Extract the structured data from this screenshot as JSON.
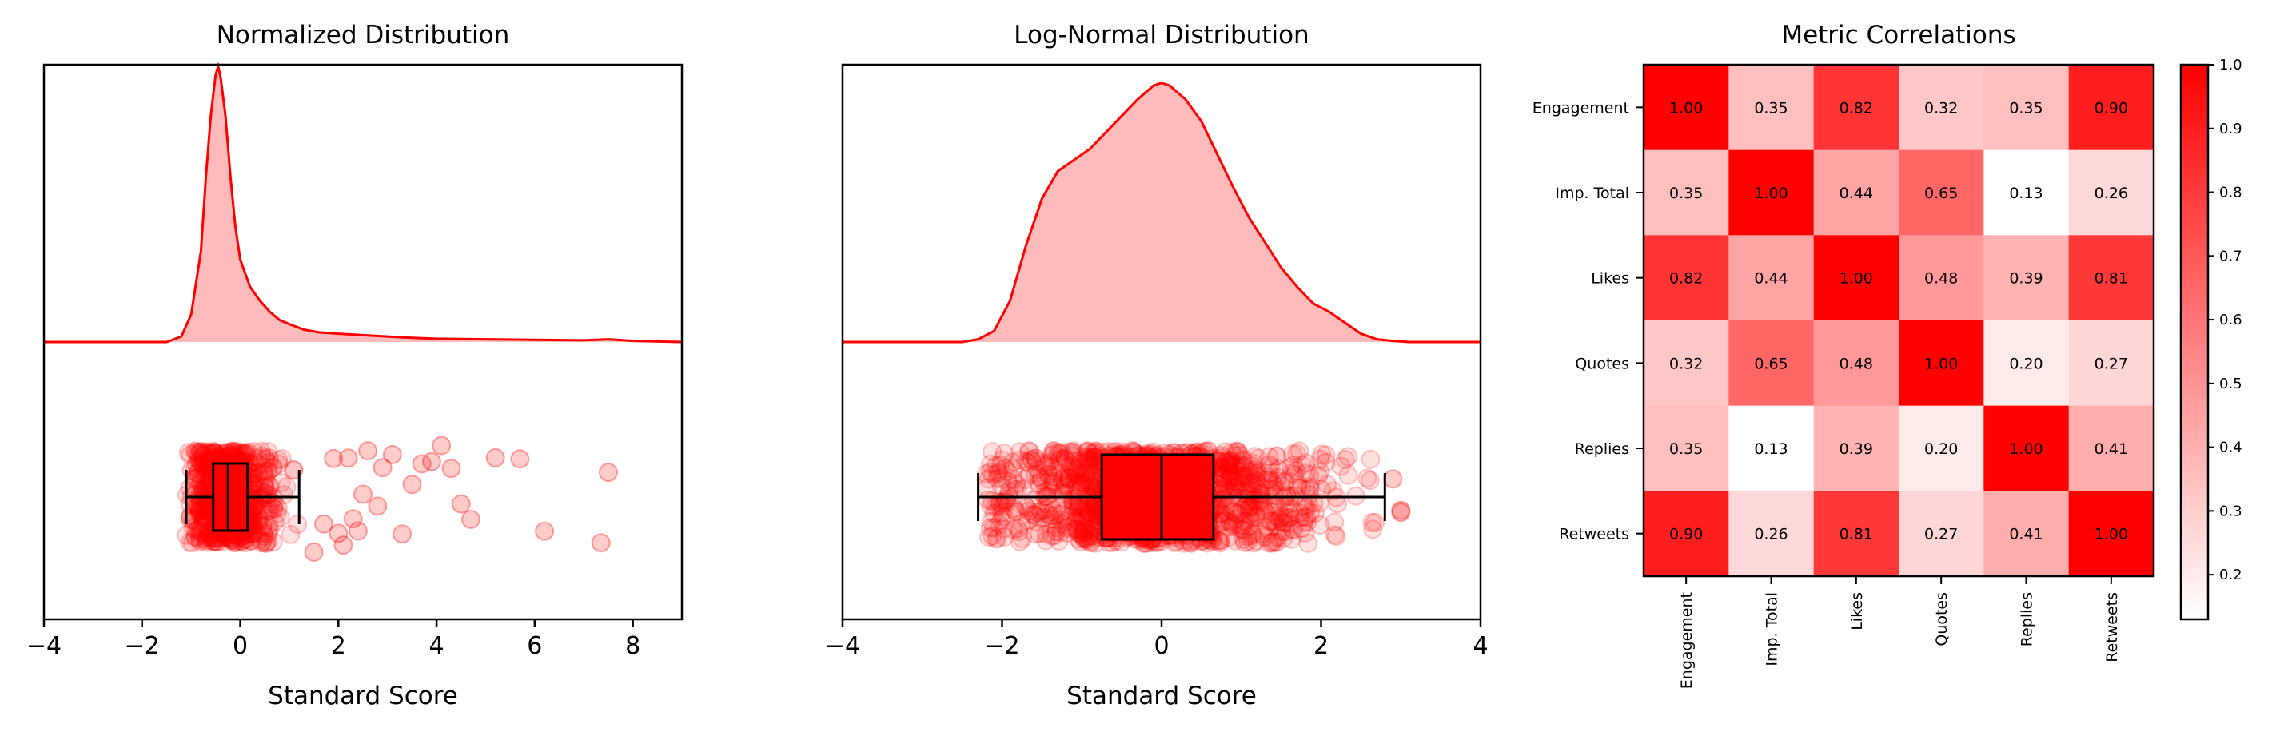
{
  "colors": {
    "accent": "#ff0000",
    "fill": "#ffbbbb",
    "axis": "#000000"
  },
  "chart_data": [
    {
      "type": "area",
      "title": "Normalized Distribution",
      "xlabel": "Standard Score",
      "ylabel": "",
      "xlim": [
        -4,
        9
      ],
      "xticks": [
        -4,
        -2,
        0,
        2,
        4,
        6,
        8
      ],
      "kde": {
        "x": [
          -1.5,
          -1.2,
          -1.0,
          -0.8,
          -0.7,
          -0.6,
          -0.5,
          -0.45,
          -0.4,
          -0.3,
          -0.2,
          -0.1,
          0,
          0.2,
          0.4,
          0.6,
          0.8,
          1.0,
          1.3,
          1.6,
          2.0,
          2.5,
          3.0,
          3.5,
          4.0,
          5.0,
          6.0,
          7.0,
          7.5,
          8.0,
          9.0
        ],
        "density": [
          0,
          0.02,
          0.1,
          0.33,
          0.6,
          0.82,
          0.97,
          1.0,
          0.96,
          0.82,
          0.6,
          0.42,
          0.3,
          0.2,
          0.15,
          0.11,
          0.08,
          0.065,
          0.045,
          0.035,
          0.03,
          0.025,
          0.02,
          0.015,
          0.012,
          0.01,
          0.008,
          0.006,
          0.01,
          0.004,
          0
        ]
      },
      "box": {
        "whisker_low": -1.1,
        "q1": -0.55,
        "median": -0.25,
        "q3": 0.15,
        "whisker_high": 1.2
      },
      "outliers": [
        1.5,
        1.7,
        1.9,
        2.0,
        2.1,
        2.2,
        2.3,
        2.4,
        2.5,
        2.6,
        2.8,
        2.9,
        3.1,
        3.3,
        3.5,
        3.7,
        3.9,
        4.1,
        4.3,
        4.5,
        4.7,
        5.2,
        5.7,
        6.2,
        7.35,
        7.5
      ]
    },
    {
      "type": "area",
      "title": "Log-Normal Distribution",
      "xlabel": "Standard Score",
      "ylabel": "",
      "xlim": [
        -4,
        4
      ],
      "xticks": [
        -4,
        -2,
        0,
        2,
        4
      ],
      "kde": {
        "x": [
          -2.5,
          -2.3,
          -2.1,
          -1.9,
          -1.7,
          -1.5,
          -1.3,
          -1.1,
          -0.9,
          -0.7,
          -0.5,
          -0.3,
          -0.1,
          0,
          0.1,
          0.3,
          0.5,
          0.7,
          0.9,
          1.1,
          1.3,
          1.5,
          1.7,
          1.9,
          2.1,
          2.3,
          2.5,
          2.7,
          2.9,
          3.1
        ],
        "density": [
          0,
          0.01,
          0.04,
          0.15,
          0.35,
          0.52,
          0.62,
          0.66,
          0.7,
          0.76,
          0.82,
          0.88,
          0.93,
          0.94,
          0.93,
          0.88,
          0.8,
          0.68,
          0.56,
          0.45,
          0.36,
          0.27,
          0.2,
          0.14,
          0.11,
          0.07,
          0.03,
          0.01,
          0.004,
          0
        ]
      },
      "box": {
        "whisker_low": -2.3,
        "q1": -0.75,
        "median": 0.0,
        "q3": 0.65,
        "whisker_high": 2.8
      },
      "outliers": [
        2.9,
        3.0,
        3.0
      ]
    },
    {
      "type": "heatmap",
      "title": "Metric Correlations",
      "labels": [
        "Engagement",
        "Imp. Total",
        "Likes",
        "Quotes",
        "Replies",
        "Retweets"
      ],
      "values": [
        [
          1.0,
          0.35,
          0.82,
          0.32,
          0.35,
          0.9
        ],
        [
          0.35,
          1.0,
          0.44,
          0.65,
          0.13,
          0.26
        ],
        [
          0.82,
          0.44,
          1.0,
          0.48,
          0.39,
          0.81
        ],
        [
          0.32,
          0.65,
          0.48,
          1.0,
          0.2,
          0.27
        ],
        [
          0.35,
          0.13,
          0.39,
          0.2,
          1.0,
          0.41
        ],
        [
          0.9,
          0.26,
          0.81,
          0.27,
          0.41,
          1.0
        ]
      ],
      "colorbar": {
        "min": 0.13,
        "max": 1.0,
        "ticks": [
          0.2,
          0.3,
          0.4,
          0.5,
          0.6,
          0.7,
          0.8,
          0.9,
          1.0
        ],
        "tick_labels": [
          "0.2",
          "0.3",
          "0.4",
          "0.5",
          "0.6",
          "0.7",
          "0.8",
          "0.9",
          "1.0"
        ]
      }
    }
  ]
}
